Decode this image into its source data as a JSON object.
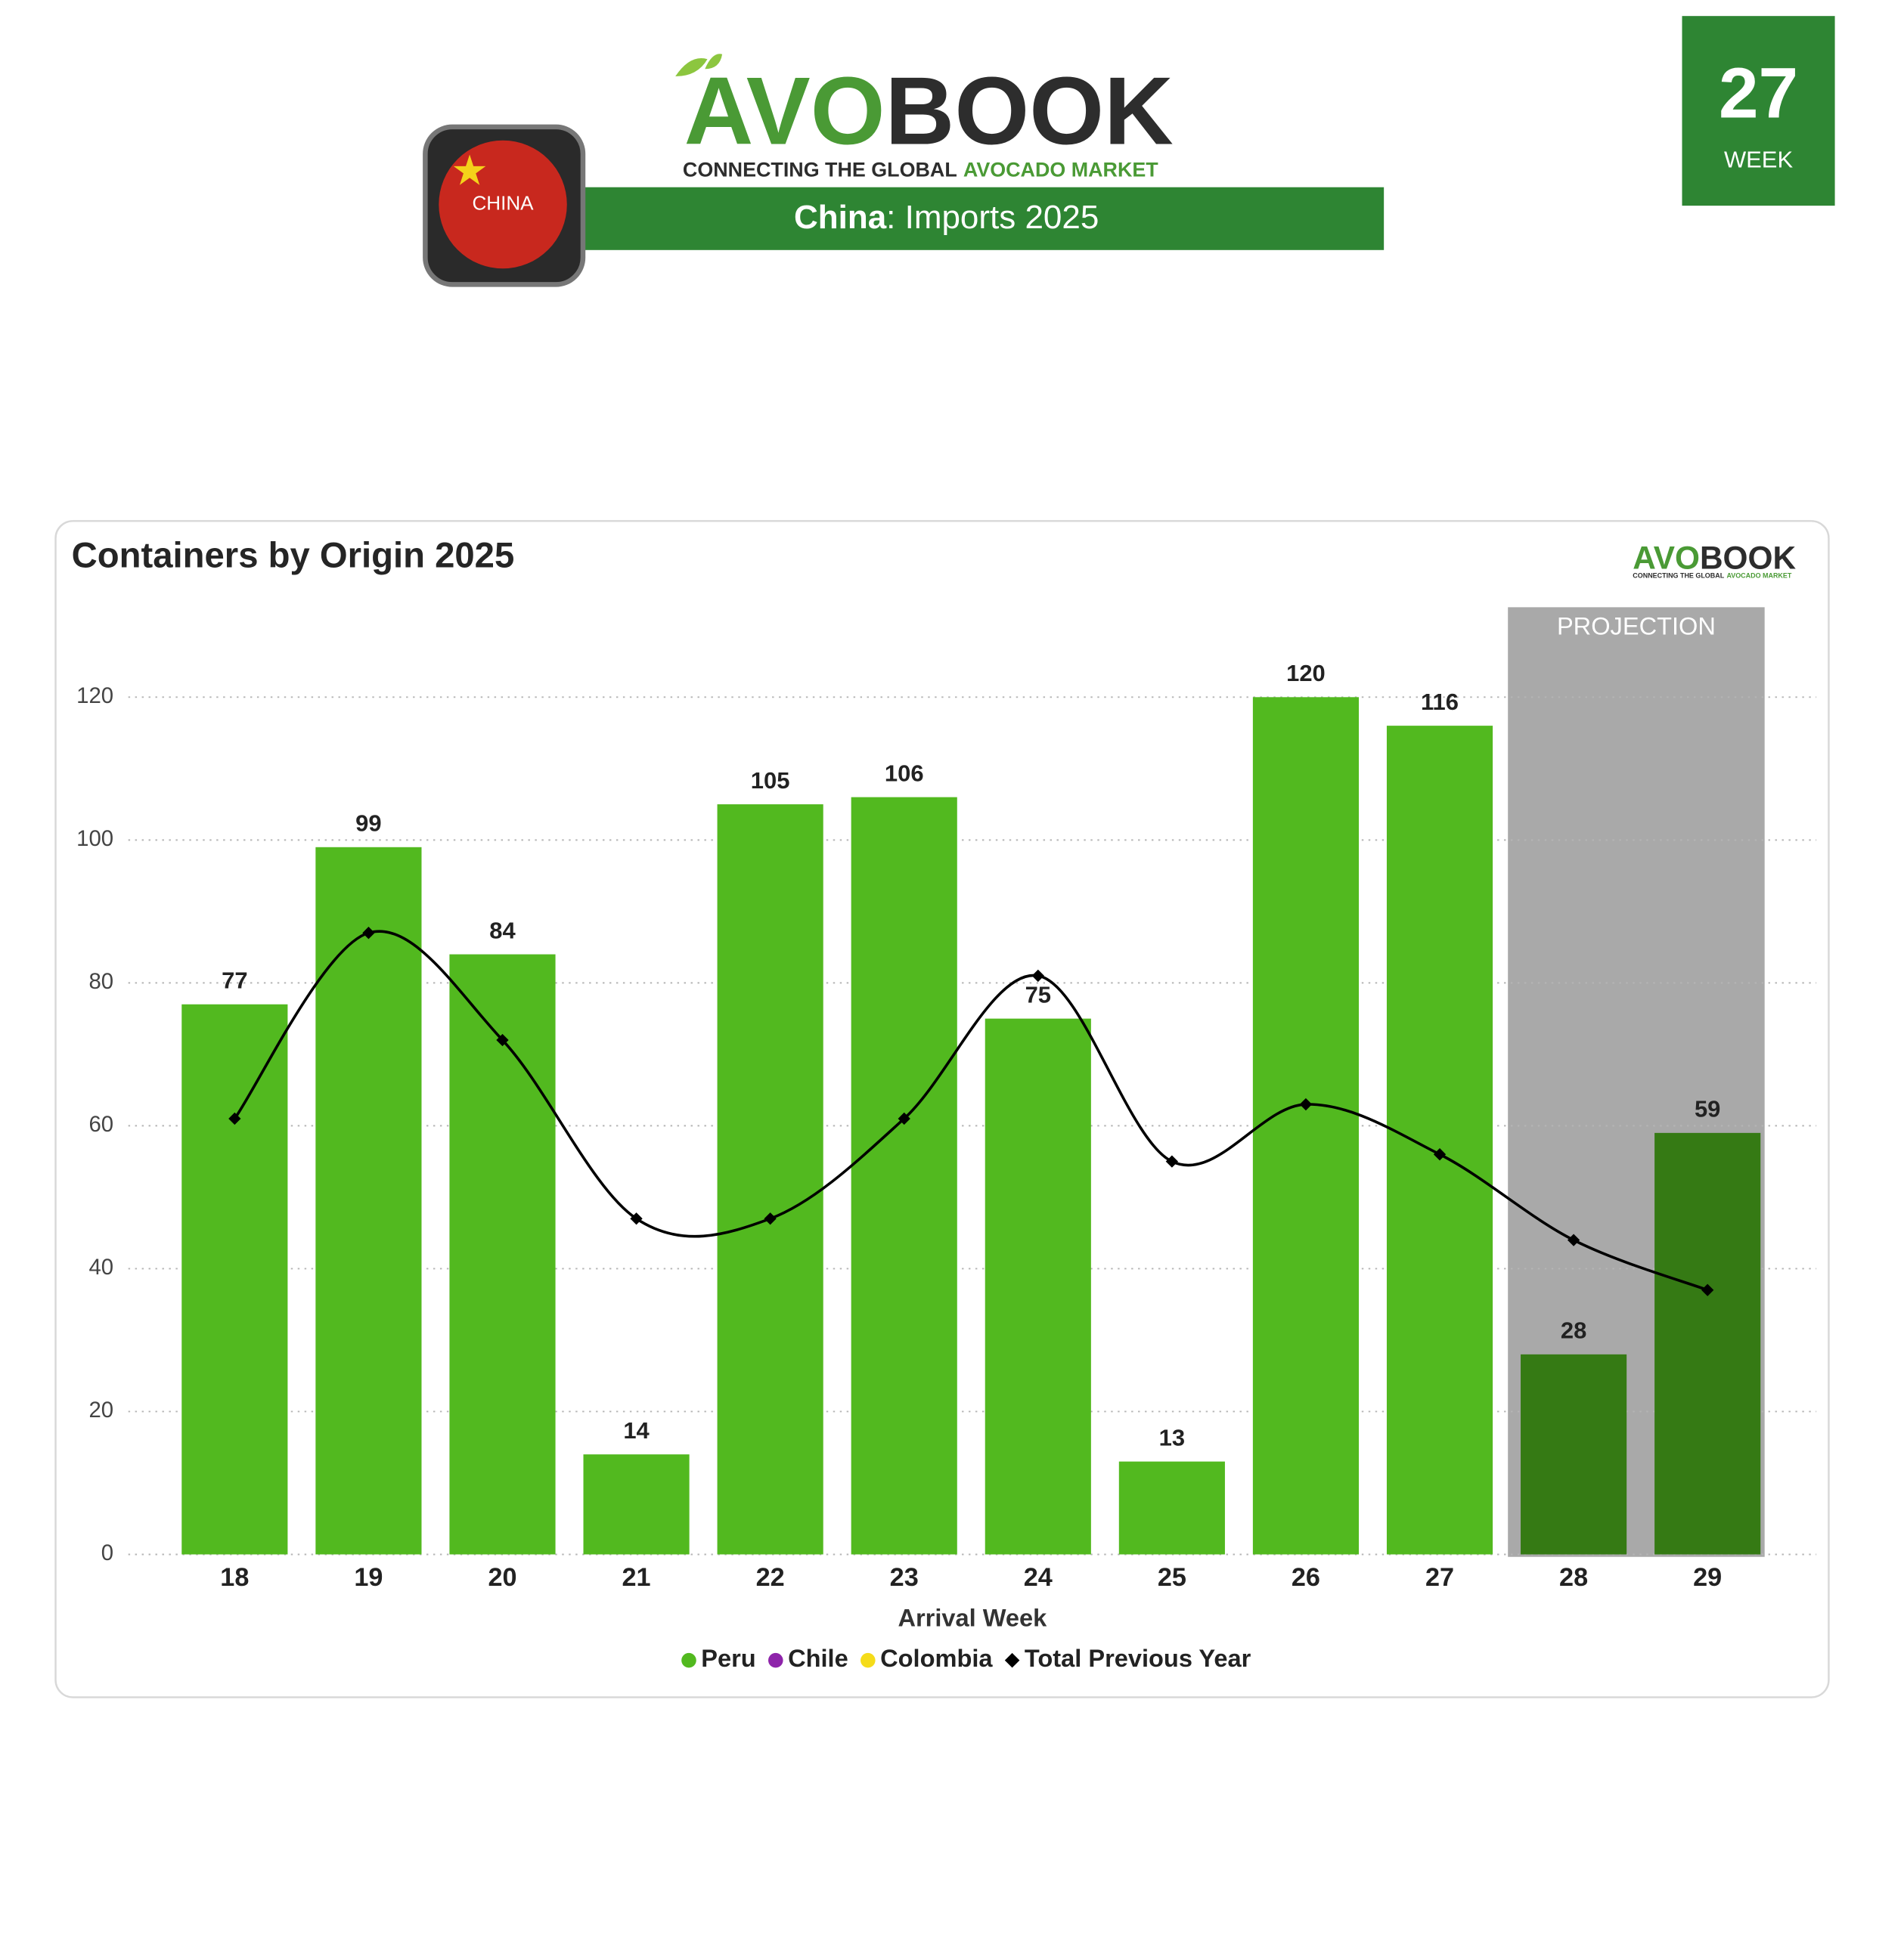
{
  "header": {
    "logo": {
      "part1": "AVO",
      "part2": "BOOK"
    },
    "tagline": {
      "part1": "CONNECTING THE GLOBAL",
      "part2": "AVOCADO MARKET"
    },
    "country_badge": "CHINA",
    "title": {
      "part1": "China",
      "part2": ": Imports 2025"
    },
    "week": {
      "number": "27",
      "label": "WEEK"
    }
  },
  "chart_data": {
    "type": "bar",
    "title": "Containers by Origin 2025",
    "x_label": "Arrival Week",
    "categories": [
      "18",
      "19",
      "20",
      "21",
      "22",
      "23",
      "24",
      "25",
      "26",
      "27",
      "28",
      "29"
    ],
    "series": [
      {
        "name": "Peru",
        "color": "#52b91f",
        "projected_color": "#357a14",
        "values": [
          77,
          99,
          84,
          14,
          105,
          106,
          75,
          13,
          120,
          116,
          28,
          59
        ]
      },
      {
        "name": "Chile",
        "color": "#8e24aa",
        "values": [
          null,
          null,
          null,
          null,
          null,
          null,
          null,
          null,
          null,
          null,
          null,
          null
        ]
      },
      {
        "name": "Colombia",
        "color": "#f5dc1a",
        "values": [
          null,
          null,
          null,
          null,
          null,
          null,
          null,
          null,
          null,
          null,
          null,
          null
        ]
      },
      {
        "name": "Total Previous Year",
        "type": "line",
        "color": "#000000",
        "values": [
          61,
          87,
          72,
          47,
          47,
          61,
          81,
          55,
          63,
          56,
          44,
          37
        ]
      }
    ],
    "projection": {
      "label": "PROJECTION",
      "from": "28",
      "to": "29",
      "color": "#a9a9a9"
    },
    "ylim": [
      0,
      120
    ],
    "yticks": [
      0,
      20,
      40,
      60,
      80,
      100,
      120
    ],
    "grid": true,
    "legend": "bottom"
  }
}
